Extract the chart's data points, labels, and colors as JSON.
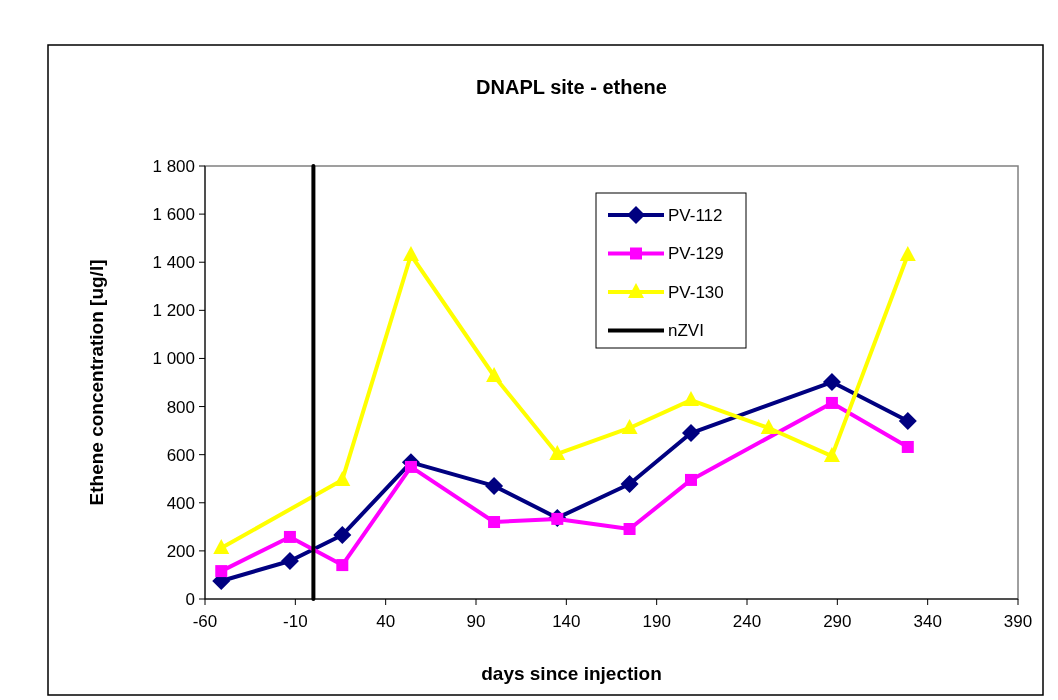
{
  "chart_data": {
    "type": "line",
    "title": "DNAPL site - ethene",
    "xlabel": "days since injection",
    "ylabel": "Ethene concentration [ug/l]",
    "xlim": [
      -60,
      390
    ],
    "xticks": [
      -60,
      -10,
      40,
      90,
      140,
      190,
      240,
      290,
      340,
      390
    ],
    "ylim": [
      0,
      1800
    ],
    "yticks": [
      {
        "value": 0,
        "label": "0"
      },
      {
        "value": 200,
        "label": "200"
      },
      {
        "value": 400,
        "label": "400"
      },
      {
        "value": 600,
        "label": "600"
      },
      {
        "value": 800,
        "label": "800"
      },
      {
        "value": 1000,
        "label": "1 000"
      },
      {
        "value": 1200,
        "label": "1 200"
      },
      {
        "value": 1400,
        "label": "1 400"
      },
      {
        "value": 1600,
        "label": "1 600"
      },
      {
        "value": 1800,
        "label": "1 800"
      }
    ],
    "grid": false,
    "legend": "top",
    "line_style": "solid",
    "series": [
      {
        "name": "PV-112",
        "color": "#000080",
        "marker": "diamond",
        "x": [
          -51,
          -13,
          16,
          54,
          100,
          135,
          175,
          209,
          287,
          329
        ],
        "values": [
          75,
          158,
          266,
          568,
          470,
          337,
          478,
          690,
          902,
          740
        ]
      },
      {
        "name": "PV-129",
        "color": "#ff00ff",
        "marker": "square",
        "x": [
          -51,
          -13,
          16,
          54,
          100,
          135,
          175,
          209,
          287,
          329
        ],
        "values": [
          116,
          258,
          141,
          549,
          320,
          333,
          291,
          495,
          815,
          632
        ]
      },
      {
        "name": "PV-130",
        "color": "#ffff00",
        "marker": "triangle",
        "x": [
          -51,
          16,
          54,
          100,
          135,
          175,
          209,
          252,
          287,
          329
        ],
        "values": [
          212,
          495,
          1430,
          927,
          603,
          711,
          827,
          711,
          594,
          1430
        ]
      },
      {
        "name": "nZVI",
        "color": "#000000",
        "type": "line",
        "marker": "none",
        "x": [
          0,
          0
        ],
        "values": [
          0,
          1800
        ]
      }
    ]
  }
}
